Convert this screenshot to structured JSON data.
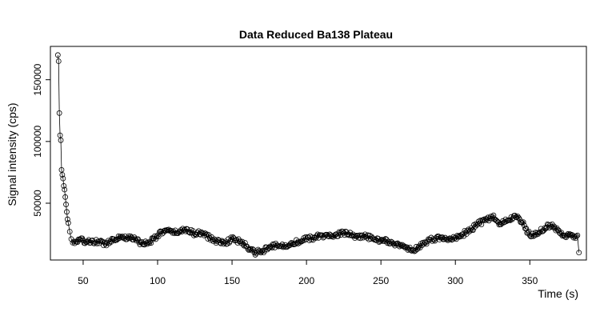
{
  "chart_data": {
    "type": "line",
    "title": "Data Reduced Ba138 Plateau",
    "xlabel": "Time (s)",
    "ylabel": "Signal intensity (cps)",
    "xlim": [
      28,
      388
    ],
    "ylim": [
      4000,
      177000
    ],
    "x_ticks": [
      50,
      100,
      150,
      200,
      250,
      300,
      350
    ],
    "y_ticks": [
      50000,
      100000,
      150000
    ],
    "grid": false,
    "legend": "none",
    "point_style": "open-circle",
    "anchors": [
      [
        33,
        170000
      ],
      [
        33.5,
        165000
      ],
      [
        34,
        123000
      ],
      [
        34.5,
        105000
      ],
      [
        35,
        101000
      ],
      [
        35.5,
        77000
      ],
      [
        36,
        73000
      ],
      [
        36.5,
        70000
      ],
      [
        37,
        64000
      ],
      [
        37.5,
        61000
      ],
      [
        38,
        55000
      ],
      [
        38.5,
        49000
      ],
      [
        39,
        43000
      ],
      [
        39.5,
        37000
      ],
      [
        40,
        34000
      ],
      [
        41,
        27000
      ],
      [
        42,
        21000
      ],
      [
        43,
        18000
      ],
      [
        45,
        19000
      ],
      [
        50,
        20000
      ],
      [
        55,
        18000
      ],
      [
        60,
        19000
      ],
      [
        65,
        17000
      ],
      [
        70,
        21000
      ],
      [
        75,
        23000
      ],
      [
        80,
        22000
      ],
      [
        85,
        21000
      ],
      [
        90,
        17000
      ],
      [
        95,
        19000
      ],
      [
        100,
        24000
      ],
      [
        105,
        28000
      ],
      [
        110,
        26000
      ],
      [
        115,
        27000
      ],
      [
        120,
        29000
      ],
      [
        125,
        25000
      ],
      [
        130,
        26000
      ],
      [
        135,
        22000
      ],
      [
        140,
        19000
      ],
      [
        145,
        18000
      ],
      [
        150,
        21000
      ],
      [
        155,
        19000
      ],
      [
        160,
        15000
      ],
      [
        165,
        10000
      ],
      [
        170,
        11000
      ],
      [
        175,
        14000
      ],
      [
        180,
        16000
      ],
      [
        185,
        15000
      ],
      [
        190,
        18000
      ],
      [
        195,
        19000
      ],
      [
        200,
        21000
      ],
      [
        205,
        22000
      ],
      [
        210,
        24000
      ],
      [
        215,
        23000
      ],
      [
        220,
        25000
      ],
      [
        225,
        26000
      ],
      [
        230,
        24000
      ],
      [
        235,
        22000
      ],
      [
        240,
        23000
      ],
      [
        245,
        21000
      ],
      [
        250,
        20000
      ],
      [
        255,
        19000
      ],
      [
        260,
        17000
      ],
      [
        265,
        15000
      ],
      [
        270,
        12000
      ],
      [
        275,
        14000
      ],
      [
        280,
        18000
      ],
      [
        285,
        21000
      ],
      [
        290,
        22000
      ],
      [
        295,
        20000
      ],
      [
        300,
        22000
      ],
      [
        305,
        25000
      ],
      [
        310,
        28000
      ],
      [
        315,
        33000
      ],
      [
        320,
        36000
      ],
      [
        325,
        39000
      ],
      [
        330,
        33000
      ],
      [
        335,
        36000
      ],
      [
        340,
        40000
      ],
      [
        345,
        34000
      ],
      [
        350,
        24000
      ],
      [
        355,
        26000
      ],
      [
        360,
        30000
      ],
      [
        365,
        33000
      ],
      [
        370,
        26000
      ],
      [
        375,
        24000
      ],
      [
        380,
        23000
      ],
      [
        382,
        24000
      ],
      [
        383,
        10000
      ]
    ]
  }
}
